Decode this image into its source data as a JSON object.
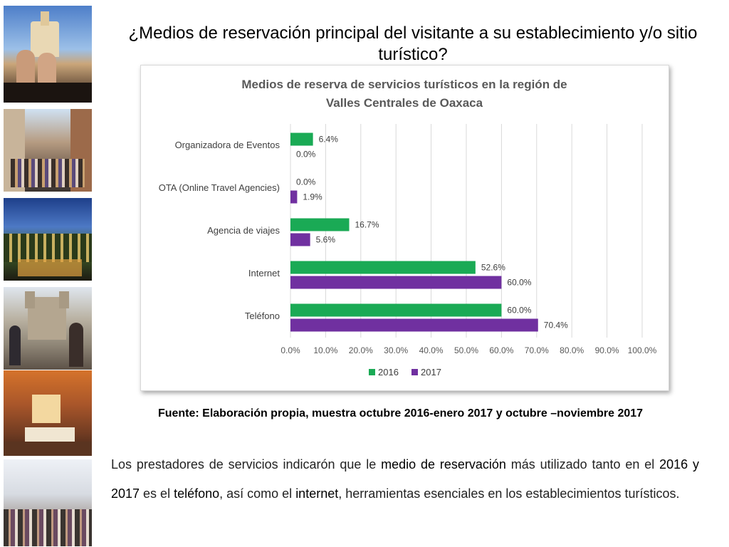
{
  "slide": {
    "title": "¿Medios de reservación principal del visitante a su establecimiento y/o sitio turístico?",
    "source": "Fuente: Elaboración propia, muestra octubre 2016-enero 2017 y octubre –noviembre 2017",
    "paragraph": {
      "t1": "Los prestadores de servicios indicarón que le ",
      "h1": "medio de reservación",
      "t2": " más utilizado tanto en el ",
      "h2": "2016 y 2017",
      "t3": " es el ",
      "h3": "teléfono",
      "t4": ", así como el ",
      "h4": "internet",
      "t5": ", herramientas esenciales en los establecimientos turísticos."
    }
  },
  "photos": [
    {
      "name": "pool-photo"
    },
    {
      "name": "street-crowd-photo"
    },
    {
      "name": "terrace-night-photo"
    },
    {
      "name": "church-plaza-photo"
    },
    {
      "name": "hotel-room-photo"
    },
    {
      "name": "shopping-street-photo"
    }
  ],
  "chart_data": {
    "type": "bar",
    "orientation": "horizontal",
    "title": "Medios de reserva de  servicios turísticos  en la región de Valles Centrales de Oaxaca",
    "title_lines": [
      "Medios de reserva de  servicios turísticos  en la región de",
      "Valles Centrales de Oaxaca"
    ],
    "categories": [
      "Organizadora de Eventos",
      "OTA (Online Travel Agencies)",
      "Agencia de viajes",
      "Internet",
      "Teléfono"
    ],
    "series": [
      {
        "name": "2016",
        "color": "#1aaa55",
        "values": [
          6.4,
          0.0,
          16.7,
          52.6,
          60.0
        ],
        "labels": [
          "6.4%",
          "0.0%",
          "16.7%",
          "52.6%",
          "60.0%"
        ]
      },
      {
        "name": "2017",
        "color": "#7030a0",
        "values": [
          0.0,
          1.9,
          5.6,
          60.0,
          70.4
        ],
        "labels": [
          "0.0%",
          "1.9%",
          "5.6%",
          "60.0%",
          "70.4%"
        ]
      }
    ],
    "xlim": [
      0,
      100
    ],
    "ticks": [
      "0.0%",
      "10.0%",
      "20.0%",
      "30.0%",
      "40.0%",
      "50.0%",
      "60.0%",
      "70.0%",
      "80.0%",
      "90.0%",
      "100.0%"
    ],
    "grid": true,
    "legend": "bottom"
  }
}
